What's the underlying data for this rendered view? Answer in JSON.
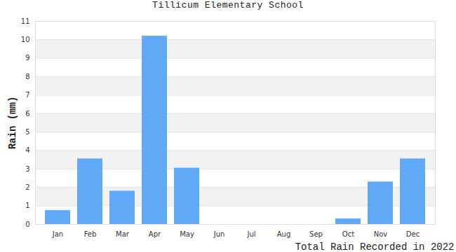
{
  "chart_data": {
    "type": "bar",
    "title": "Tillicum Elementary School",
    "xlabel": "Total Rain Recorded in 2022",
    "ylabel": "Rain (mm)",
    "categories": [
      "Jan",
      "Feb",
      "Mar",
      "Apr",
      "May",
      "Jun",
      "Jul",
      "Aug",
      "Sep",
      "Oct",
      "Nov",
      "Dec"
    ],
    "values": [
      0.75,
      3.55,
      1.8,
      10.2,
      3.05,
      0,
      0,
      0,
      0,
      0.3,
      2.3,
      3.55
    ],
    "color": "#60a9f6",
    "ylim": [
      0,
      11
    ],
    "yticks": [
      0,
      1,
      2,
      3,
      4,
      5,
      6,
      7,
      8,
      9,
      10,
      11
    ],
    "grid": true
  }
}
